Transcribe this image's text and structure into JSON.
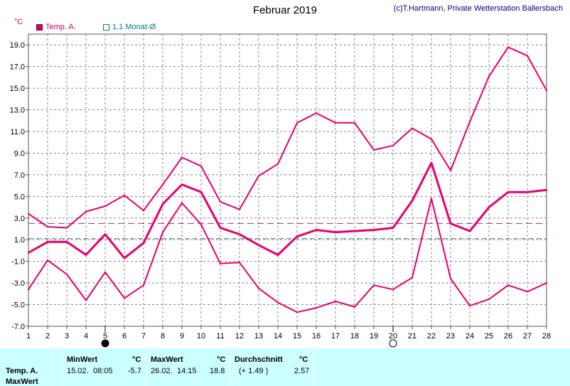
{
  "title": "Februar 2019",
  "copyright": "(c)T.Hartmann, Private Wetterstation Ballersbach",
  "unit": "°C",
  "legend": {
    "temp": "Temp. A.",
    "avg": "1.1 Monat-Ø"
  },
  "colors": {
    "series": "#e8006f",
    "avg_line": "#a0306f",
    "ref_line": "#2a7a9a",
    "grid": "#888888"
  },
  "chart_data": {
    "type": "line",
    "x": [
      1,
      2,
      3,
      4,
      5,
      6,
      7,
      8,
      9,
      10,
      11,
      12,
      13,
      14,
      15,
      16,
      17,
      18,
      19,
      20,
      21,
      22,
      23,
      24,
      25,
      26,
      27,
      28
    ],
    "xlim": [
      1,
      28
    ],
    "ylim": [
      -7,
      20
    ],
    "yticks": [
      -7.0,
      -5.0,
      -3.0,
      -1.0,
      1.0,
      3.0,
      5.0,
      7.0,
      9.0,
      11.0,
      13.0,
      15.0,
      17.0,
      19.0
    ],
    "grid": true,
    "series": [
      {
        "name": "Temp. A.",
        "role": "max",
        "values": [
          3.4,
          2.2,
          2.1,
          3.6,
          4.1,
          5.1,
          3.7,
          6.1,
          8.6,
          7.8,
          4.5,
          3.8,
          6.9,
          8.0,
          11.8,
          12.7,
          11.8,
          11.8,
          9.3,
          9.7,
          11.3,
          10.3,
          7.4,
          11.9,
          16.1,
          18.8,
          18.0,
          14.8
        ]
      },
      {
        "name": "",
        "role": "mean",
        "values": [
          -0.2,
          0.8,
          0.8,
          -0.4,
          1.5,
          -0.7,
          0.7,
          4.3,
          6.1,
          5.4,
          2.1,
          1.5,
          0.5,
          -0.4,
          1.3,
          1.9,
          1.7,
          1.8,
          1.9,
          2.1,
          4.6,
          8.1,
          2.5,
          1.8,
          4.0,
          5.4,
          5.4,
          5.6
        ]
      },
      {
        "name": "",
        "role": "min",
        "values": [
          -3.6,
          -0.9,
          -2.2,
          -4.6,
          -2.0,
          -4.4,
          -3.2,
          1.7,
          4.4,
          2.4,
          -1.2,
          -1.1,
          -3.5,
          -4.8,
          -5.7,
          -5.3,
          -4.7,
          -5.2,
          -3.2,
          -3.6,
          -2.5,
          4.8,
          -2.6,
          -5.1,
          -4.5,
          -3.2,
          -3.8,
          -3.0
        ]
      }
    ],
    "reference_lines": [
      {
        "name": "monthly-mean",
        "value": 2.5
      },
      {
        "name": "1.1 Monat-Ø",
        "value": 1.1
      }
    ],
    "moon_phases": [
      {
        "x": 5,
        "phase": "new"
      },
      {
        "x": 20,
        "phase": "full"
      }
    ]
  },
  "table": {
    "row_label_1": "Temp. A.",
    "row_label_2": "MaxWert",
    "min_header": "MinWert",
    "min_unit": "°C",
    "min_date": "15.02.",
    "min_time": "08:05",
    "min_value": "-5.7",
    "max_header": "MaxWert",
    "max_unit": "°C",
    "max_date": "26.02.",
    "max_time": "14:15",
    "max_value": "18.8",
    "avg_header": "Durchschnitt",
    "avg_unit": "°C",
    "avg_diff": "(+ 1.49 )",
    "avg_value": "2.57"
  }
}
